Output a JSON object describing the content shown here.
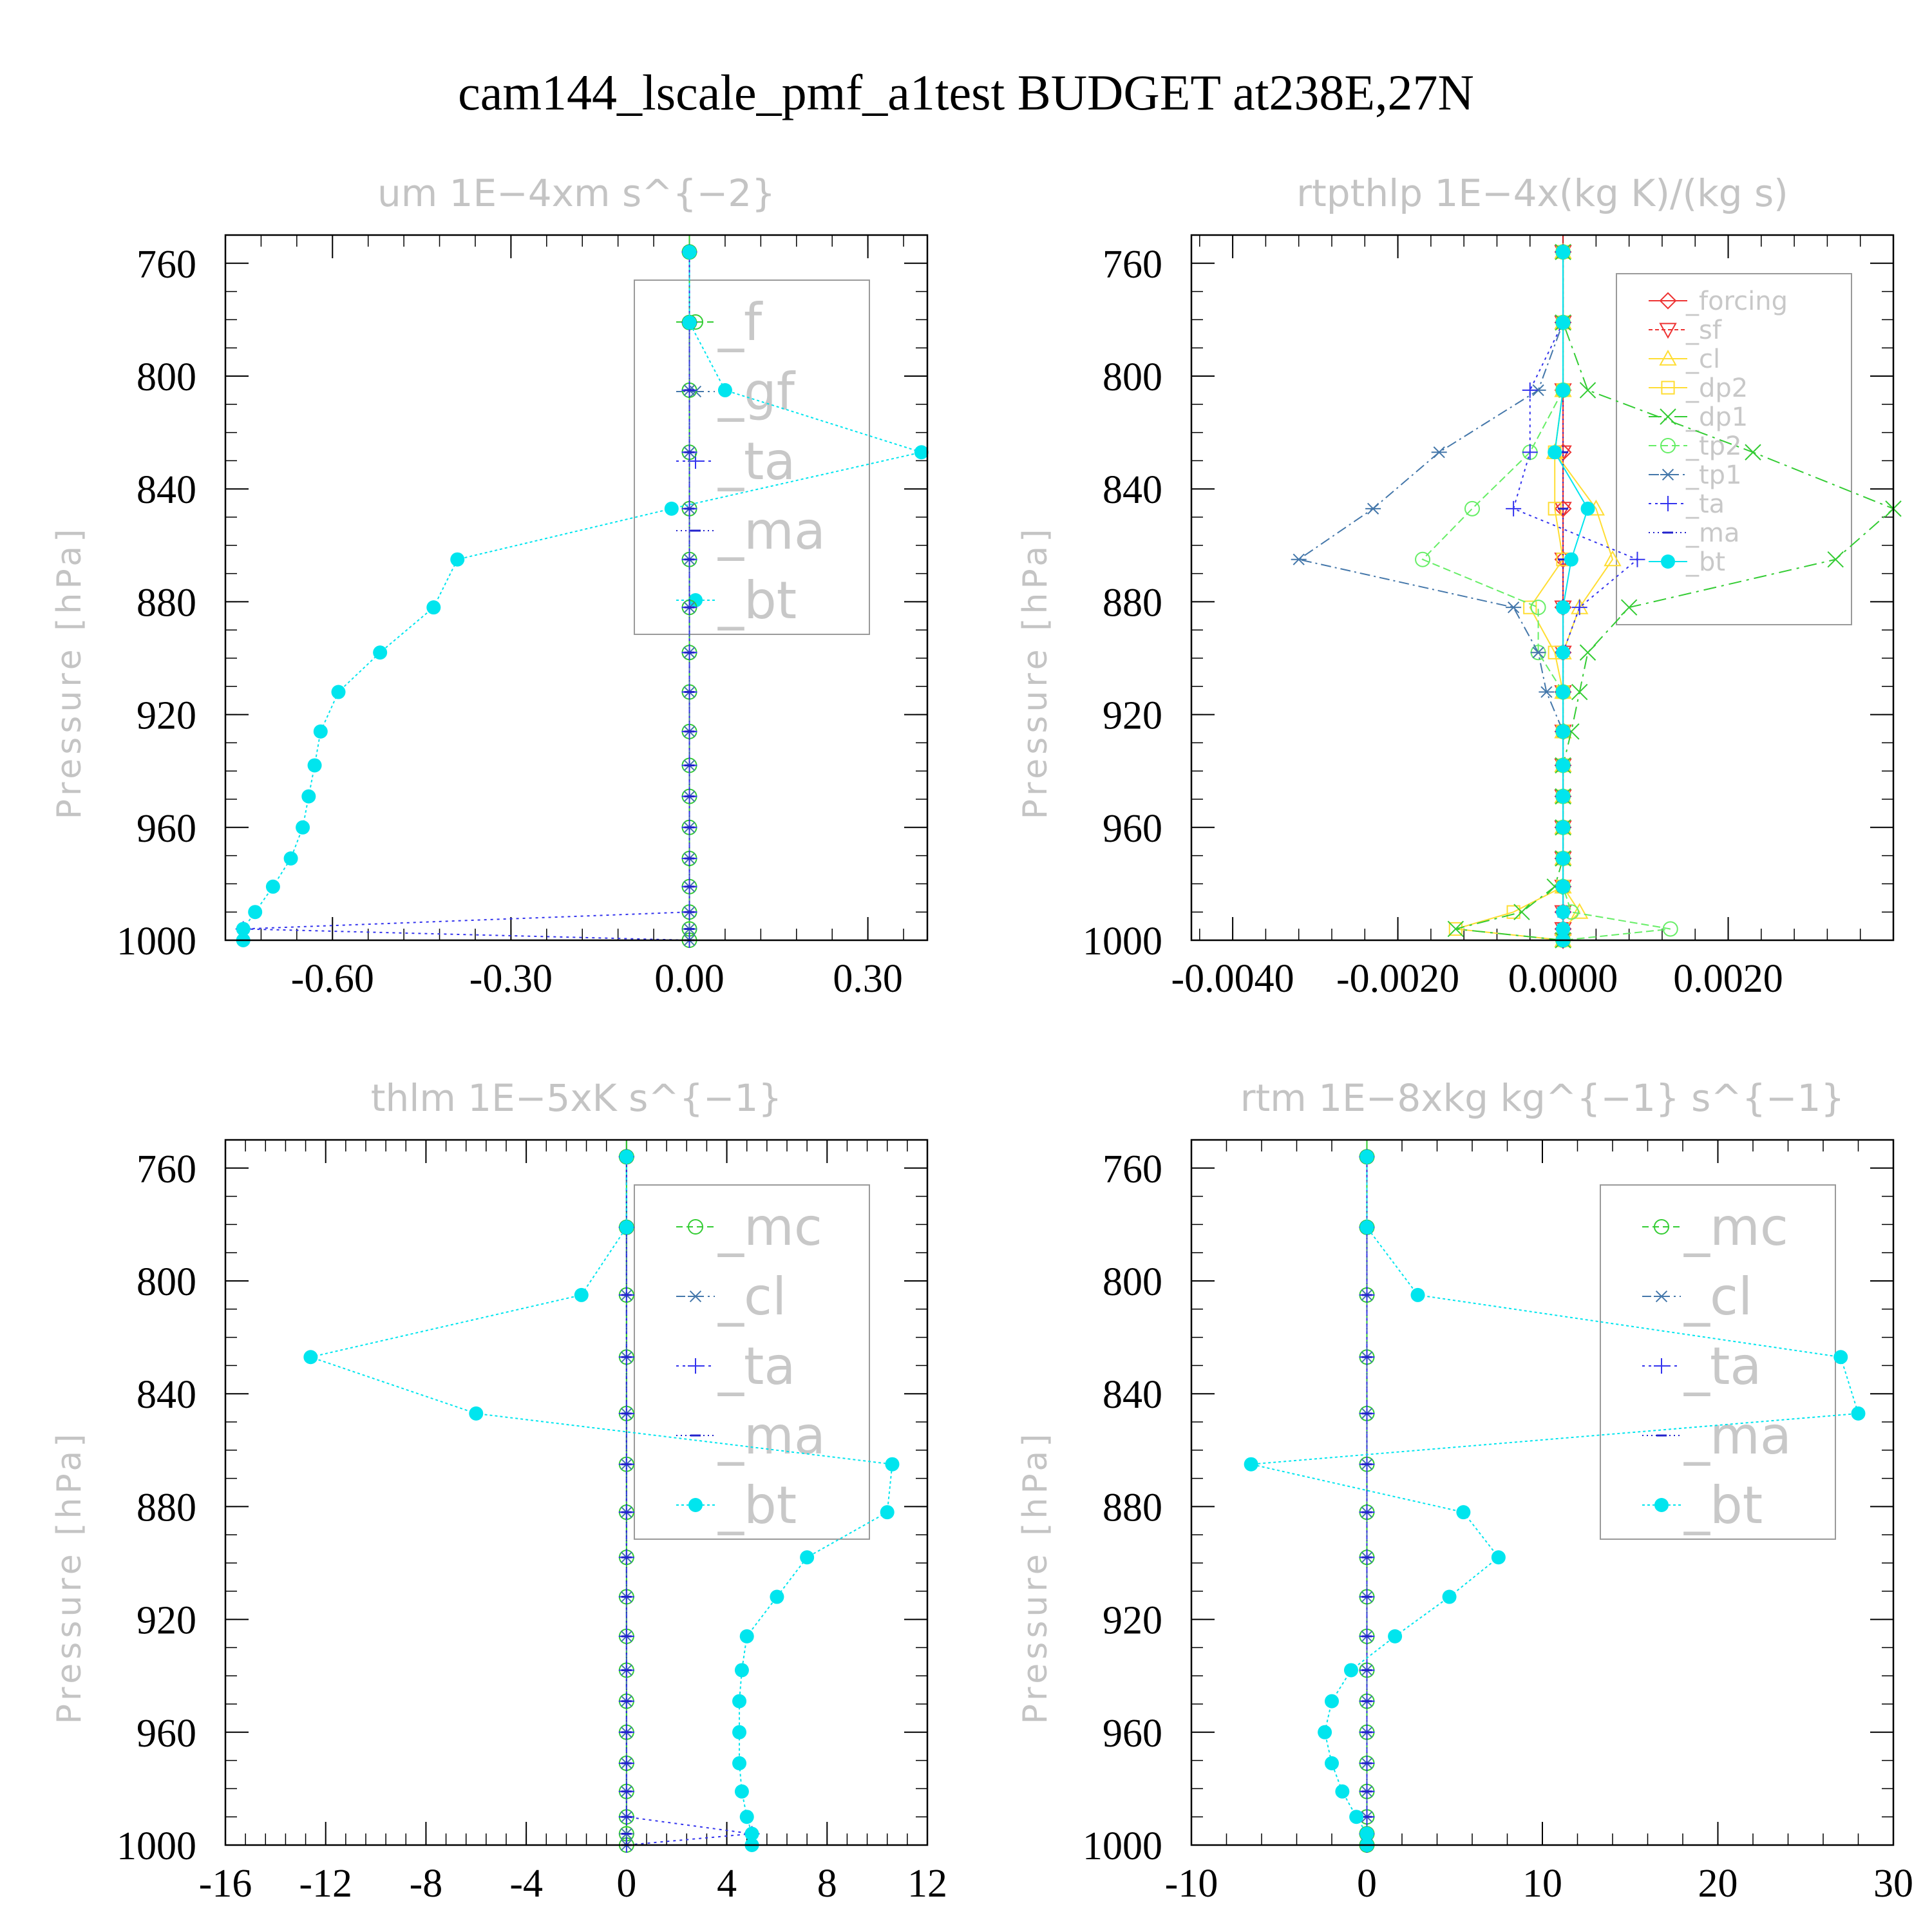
{
  "title": "cam144_lscale_pmf_a1test  BUDGET at238E,27N",
  "colors": {
    "cyan": "#00e5ee",
    "green": "#33cc33",
    "blue": "#3333ee",
    "steel": "#4477aa",
    "red": "#ee3333",
    "yellow": "#ffdd33",
    "lightgreen": "#66ee66",
    "dash_blue": "#2222cc"
  },
  "chart_data": [
    {
      "type": "line",
      "title": "um  1E−4xm s^{−2}",
      "ylabel": "Pressure [hPa]",
      "xlabel": "",
      "ylim": [
        750,
        1000
      ],
      "xlim": [
        -0.78,
        0.4
      ],
      "yticks": [
        760,
        800,
        840,
        880,
        920,
        960,
        1000
      ],
      "xticks": [
        -0.6,
        -0.3,
        0.0,
        0.3
      ],
      "xtick_labels": [
        "-0.60",
        "-0.30",
        "0.00",
        "0.30"
      ],
      "legend": {
        "position": "top-right",
        "size": "big",
        "entries": [
          "_f",
          "_gf",
          "_ta",
          "_ma",
          "_bt"
        ]
      },
      "pressure": [
        756,
        781,
        805,
        827,
        847,
        865,
        882,
        898,
        912,
        926,
        938,
        949,
        960,
        971,
        981,
        990,
        996,
        1000
      ],
      "series": [
        {
          "name": "_f",
          "color": "green",
          "marker": "circle-open",
          "dash": "10,6",
          "values": [
            0,
            0,
            0,
            0,
            0,
            0,
            0,
            0,
            0,
            0,
            0,
            0,
            0,
            0,
            0,
            0,
            0,
            0
          ]
        },
        {
          "name": "_gf",
          "color": "steel",
          "marker": "star",
          "dash": "14,6,3,6",
          "values": [
            0,
            0,
            0,
            0,
            0,
            0,
            0,
            0,
            0,
            0,
            0,
            0,
            0,
            0,
            0,
            0,
            0,
            0
          ]
        },
        {
          "name": "_ta",
          "color": "blue",
          "marker": "plus",
          "dash": "4,6",
          "values": [
            0,
            0,
            0,
            0,
            0,
            0,
            0,
            0,
            0,
            0,
            0,
            0,
            0,
            0,
            0,
            0,
            -0.75,
            0
          ]
        },
        {
          "name": "_ma",
          "color": "dash_blue",
          "marker": "dash",
          "dash": "2,5",
          "values": [
            0,
            0,
            0,
            0,
            0,
            0,
            0,
            0,
            0,
            0,
            0,
            0,
            0,
            0,
            0,
            0,
            0,
            0
          ]
        },
        {
          "name": "_bt",
          "color": "cyan",
          "marker": "dot",
          "dash": "4,4",
          "values": [
            0,
            0,
            0.06,
            0.39,
            -0.03,
            -0.39,
            -0.43,
            -0.52,
            -0.59,
            -0.62,
            -0.63,
            -0.64,
            -0.65,
            -0.67,
            -0.7,
            -0.73,
            -0.75,
            -0.75
          ]
        }
      ]
    },
    {
      "type": "line",
      "title": "rtpthlp  1E−4x(kg K)/(kg s)",
      "ylabel": "Pressure [hPa]",
      "xlabel": "",
      "ylim": [
        750,
        1000
      ],
      "xlim": [
        -0.0045,
        0.004
      ],
      "yticks": [
        760,
        800,
        840,
        880,
        920,
        960,
        1000
      ],
      "xticks": [
        -0.004,
        -0.002,
        0.0,
        0.002
      ],
      "xtick_labels": [
        "-0.0040",
        "-0.0020",
        "0.0000",
        "0.0020"
      ],
      "legend": {
        "position": "top-right",
        "size": "small",
        "entries": [
          "_forcing",
          "_sf",
          "_cl",
          "_dp2",
          "_dp1",
          "_tp2",
          "_tp1",
          "_ta",
          "_ma",
          "_bt"
        ]
      },
      "pressure": [
        756,
        781,
        805,
        827,
        847,
        865,
        882,
        898,
        912,
        926,
        938,
        949,
        960,
        971,
        981,
        990,
        996,
        1000
      ],
      "series": [
        {
          "name": "_forcing",
          "color": "red",
          "marker": "diamond",
          "dash": "",
          "values": [
            0,
            0,
            0,
            0,
            0,
            0,
            0,
            0,
            0,
            0,
            0,
            0,
            0,
            0,
            0,
            0,
            0,
            0
          ]
        },
        {
          "name": "_sf",
          "color": "red",
          "marker": "triangle-down",
          "dash": "6,4",
          "values": [
            0,
            0,
            0,
            0,
            0,
            0,
            0,
            0,
            0,
            0,
            0,
            0,
            0,
            0,
            0,
            0,
            0,
            0
          ]
        },
        {
          "name": "_cl",
          "color": "yellow",
          "marker": "triangle-up",
          "dash": "",
          "values": [
            0,
            0,
            0,
            -0.0001,
            0.0004,
            0.0006,
            0.0002,
            0,
            0,
            0,
            0,
            0,
            0,
            0,
            0,
            0.0002,
            0,
            0
          ]
        },
        {
          "name": "_dp2",
          "color": "yellow",
          "marker": "square",
          "dash": "",
          "values": [
            0,
            0,
            0,
            -0.0001,
            -0.0001,
            0,
            -0.0004,
            -0.0001,
            0,
            0,
            0,
            0,
            0,
            0,
            0,
            -0.0006,
            -0.0013,
            0
          ]
        },
        {
          "name": "_dp1",
          "color": "green",
          "marker": "x",
          "dash": "20,8,4,8",
          "values": [
            0,
            0,
            0.0003,
            0.0023,
            0.004,
            0.0033,
            0.0008,
            0.0003,
            0.0002,
            0.0001,
            0,
            0,
            0,
            0,
            -0.0001,
            -0.0005,
            -0.0013,
            0
          ]
        },
        {
          "name": "_tp2",
          "color": "lightgreen",
          "marker": "circle-open",
          "dash": "12,6",
          "values": [
            0,
            0,
            0,
            -0.0004,
            -0.0011,
            -0.0017,
            -0.0003,
            -0.0003,
            0,
            0,
            0,
            0,
            0,
            0,
            0,
            0.0001,
            0.0013,
            0
          ]
        },
        {
          "name": "_tp1",
          "color": "steel",
          "marker": "star",
          "dash": "16,6,3,6",
          "values": [
            0,
            0,
            -0.0003,
            -0.0015,
            -0.0023,
            -0.0032,
            -0.0006,
            -0.0003,
            -0.0002,
            0,
            0,
            0,
            0,
            0,
            0,
            0,
            0,
            0
          ]
        },
        {
          "name": "_ta",
          "color": "blue",
          "marker": "plus",
          "dash": "4,6",
          "values": [
            0,
            0,
            -0.0004,
            -0.0004,
            -0.0006,
            0.0009,
            0.0002,
            0,
            0,
            0,
            0,
            0,
            0,
            0,
            0,
            0,
            0,
            0
          ]
        },
        {
          "name": "_ma",
          "color": "dash_blue",
          "marker": "dash",
          "dash": "2,5",
          "values": [
            0,
            0,
            0,
            0,
            0,
            0,
            0,
            0,
            0,
            0,
            0,
            0,
            0,
            0,
            0,
            0,
            0,
            0
          ]
        },
        {
          "name": "_bt",
          "color": "cyan",
          "marker": "dot",
          "dash": "",
          "values": [
            0,
            0,
            0,
            -0.0001,
            0.0003,
            0.0001,
            0,
            0,
            0,
            0,
            0,
            0,
            0,
            0,
            0,
            0,
            0,
            0
          ]
        }
      ]
    },
    {
      "type": "line",
      "title": "thlm  1E−5xK s^{−1}",
      "ylabel": "Pressure [hPa]",
      "xlabel": "",
      "ylim": [
        750,
        1000
      ],
      "xlim": [
        -16,
        12
      ],
      "yticks": [
        760,
        800,
        840,
        880,
        920,
        960,
        1000
      ],
      "xticks": [
        -16,
        -12,
        -8,
        -4,
        0,
        4,
        8,
        12
      ],
      "xtick_labels": [
        "-16",
        "-12",
        "-8",
        "-4",
        "0",
        "4",
        "8",
        "12"
      ],
      "legend": {
        "position": "top-right",
        "size": "big",
        "entries": [
          "_mc",
          "_cl",
          "_ta",
          "_ma",
          "_bt"
        ]
      },
      "pressure": [
        756,
        781,
        805,
        827,
        847,
        865,
        882,
        898,
        912,
        926,
        938,
        949,
        960,
        971,
        981,
        990,
        996,
        1000
      ],
      "series": [
        {
          "name": "_mc",
          "color": "green",
          "marker": "circle-open",
          "dash": "10,6",
          "values": [
            0,
            0,
            0,
            0,
            0,
            0,
            0,
            0,
            0,
            0,
            0,
            0,
            0,
            0,
            0,
            0,
            0,
            0
          ]
        },
        {
          "name": "_cl",
          "color": "steel",
          "marker": "star",
          "dash": "14,6,3,6",
          "values": [
            0,
            0,
            0,
            0,
            0,
            0,
            0,
            0,
            0,
            0,
            0,
            0,
            0,
            0,
            0,
            0,
            0,
            0
          ]
        },
        {
          "name": "_ta",
          "color": "blue",
          "marker": "plus",
          "dash": "4,6",
          "values": [
            0,
            0,
            0,
            0,
            0,
            0,
            0,
            0,
            0,
            0,
            0,
            0,
            0,
            0,
            0,
            0,
            5.0,
            0
          ]
        },
        {
          "name": "_ma",
          "color": "dash_blue",
          "marker": "dash",
          "dash": "2,5",
          "values": [
            0,
            0,
            0,
            0,
            0,
            0,
            0,
            0,
            0,
            0,
            0,
            0,
            0,
            0,
            0,
            0,
            0,
            0
          ]
        },
        {
          "name": "_bt",
          "color": "cyan",
          "marker": "dot",
          "dash": "4,4",
          "values": [
            0,
            0,
            -1.8,
            -12.6,
            -6.0,
            10.6,
            10.4,
            7.2,
            6.0,
            4.8,
            4.6,
            4.5,
            4.5,
            4.5,
            4.6,
            4.8,
            5.0,
            5.0
          ]
        }
      ]
    },
    {
      "type": "line",
      "title": "rtm  1E−8xkg kg^{−1} s^{−1}",
      "ylabel": "Pressure [hPa]",
      "xlabel": "",
      "ylim": [
        750,
        1000
      ],
      "xlim": [
        -10,
        30
      ],
      "yticks": [
        760,
        800,
        840,
        880,
        920,
        960,
        1000
      ],
      "xticks": [
        -10,
        0,
        10,
        20,
        30
      ],
      "xtick_labels": [
        "-10",
        "0",
        "10",
        "20",
        "30"
      ],
      "legend": {
        "position": "top-right",
        "size": "big",
        "entries": [
          "_mc",
          "_cl",
          "_ta",
          "_ma",
          "_bt"
        ]
      },
      "pressure": [
        756,
        781,
        805,
        827,
        847,
        865,
        882,
        898,
        912,
        926,
        938,
        949,
        960,
        971,
        981,
        990,
        996,
        1000
      ],
      "series": [
        {
          "name": "_mc",
          "color": "green",
          "marker": "circle-open",
          "dash": "10,6",
          "values": [
            0,
            0,
            0,
            0,
            0,
            0,
            0,
            0,
            0,
            0,
            0,
            0,
            0,
            0,
            0,
            0,
            0,
            0
          ]
        },
        {
          "name": "_cl",
          "color": "steel",
          "marker": "star",
          "dash": "14,6,3,6",
          "values": [
            0,
            0,
            0,
            0,
            0,
            0,
            0,
            0,
            0,
            0,
            0,
            0,
            0,
            0,
            0,
            0,
            0,
            0
          ]
        },
        {
          "name": "_ta",
          "color": "blue",
          "marker": "plus",
          "dash": "4,6",
          "values": [
            0,
            0,
            0,
            0,
            0,
            0,
            0,
            0,
            0,
            0,
            0,
            0,
            0,
            0,
            0,
            0,
            0,
            0
          ]
        },
        {
          "name": "_ma",
          "color": "dash_blue",
          "marker": "dash",
          "dash": "2,5",
          "values": [
            0,
            0,
            0,
            0,
            0,
            0,
            0,
            0,
            0,
            0,
            0,
            0,
            0,
            0,
            0,
            0,
            0,
            0
          ]
        },
        {
          "name": "_bt",
          "color": "cyan",
          "marker": "dot",
          "dash": "4,4",
          "values": [
            0,
            0,
            2.9,
            27.0,
            28.0,
            -6.6,
            5.5,
            7.5,
            4.7,
            1.6,
            -0.9,
            -2.0,
            -2.4,
            -2.0,
            -1.4,
            -0.6,
            0,
            0
          ]
        }
      ]
    }
  ]
}
